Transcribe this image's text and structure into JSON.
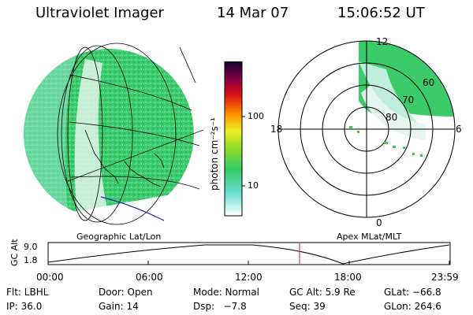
{
  "header": {
    "title": "Ultraviolet Imager",
    "date": "14 Mar 07",
    "time": "15:06:52 UT"
  },
  "globe": {
    "label": "Geographic Lat/Lon"
  },
  "colorbar": {
    "unit_label": "photon cm⁻²s⁻¹",
    "ticks": [
      "100",
      "10"
    ]
  },
  "polar": {
    "label": "Apex MLat/MLT",
    "mlt_labels": {
      "top": "12",
      "left": "18",
      "right": "6",
      "bottom": "0"
    },
    "lat_labels": [
      "60",
      "70",
      "80"
    ]
  },
  "timeline": {
    "ylabel": "GC Alt",
    "yticks": [
      "9.0",
      "1.8"
    ],
    "xticks": [
      "00:00",
      "06:00",
      "12:00",
      "18:00",
      "23:59"
    ]
  },
  "footer": {
    "row1": [
      "Flt: LBHL",
      "Door: Open",
      "Mode: Normal",
      "GC Alt: 5.9 Re",
      "GLat: −66.8"
    ],
    "row2": [
      "IP: 36.0",
      "Gain: 14",
      "Dsp:   −7.8",
      "Seq: 39",
      "GLon: 264.6"
    ]
  },
  "colors": {
    "image_green": "#33cc55",
    "image_cyan": "#66ddcc",
    "marker_red": "#cc2222",
    "coast_blue": "#2222aa"
  }
}
